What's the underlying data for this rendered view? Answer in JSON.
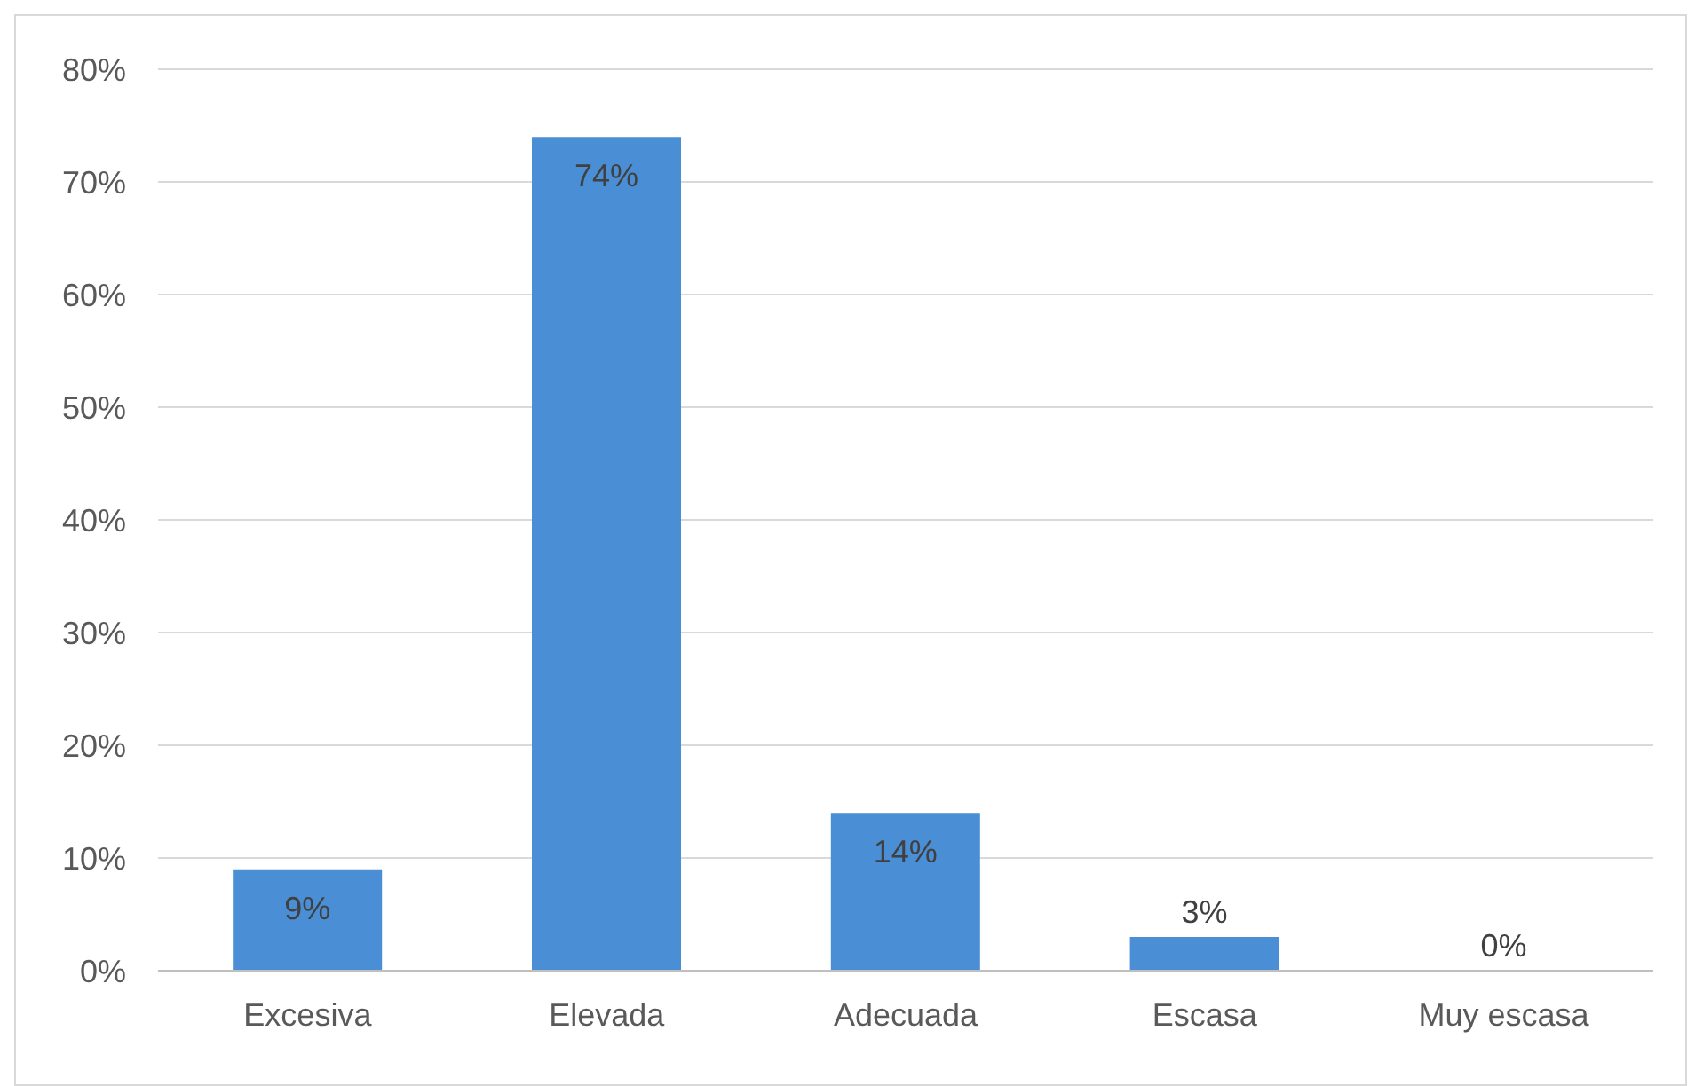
{
  "chart_data": {
    "type": "bar",
    "categories": [
      "Excesiva",
      "Elevada",
      "Adecuada",
      "Escasa",
      "Muy escasa"
    ],
    "values": [
      9,
      74,
      14,
      3,
      0
    ],
    "value_labels": [
      "9%",
      "74%",
      "14%",
      "3%",
      "0%"
    ],
    "color": "#4a8fd6",
    "ylim": [
      0,
      80
    ],
    "yticks": [
      {
        "value": 0,
        "label": "0%"
      },
      {
        "value": 10,
        "label": "10%"
      },
      {
        "value": 20,
        "label": "20%"
      },
      {
        "value": 30,
        "label": "30%"
      },
      {
        "value": 40,
        "label": "40%"
      },
      {
        "value": 50,
        "label": "50%"
      },
      {
        "value": 60,
        "label": "60%"
      },
      {
        "value": 70,
        "label": "70%"
      },
      {
        "value": 80,
        "label": "80%"
      }
    ],
    "grid": "y",
    "legend": false
  }
}
